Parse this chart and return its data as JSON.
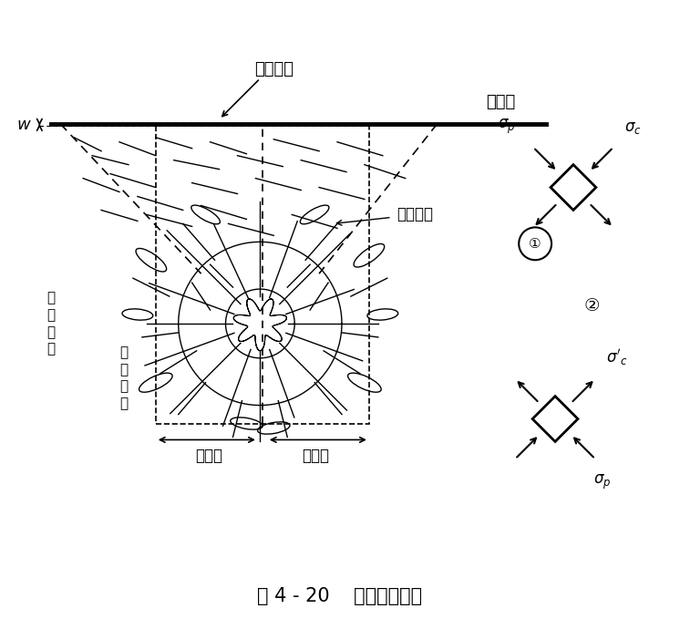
{
  "title": "图 4 - 20    爆炸碎岩机理",
  "title_fontsize": 16,
  "label_baopoloudu": "爆破漏斗",
  "label_ziyoumian": "自由面",
  "label_laduan": "拉断裂缝",
  "label_jingxiang": "径\n向\n裂\n缝",
  "label_huanxiang": "环\n向\n裂\n缝",
  "label_fensui": "粉碎区",
  "label_posui": "破碎区",
  "label_w": "w",
  "label_sigma_p_1": "σ_p",
  "label_sigma_c": "σ_c",
  "label_circle1": "①",
  "label_circle2": "②",
  "label_sigma_c_prime": "σ'_c",
  "label_sigma_p_2": "σ_p",
  "bg_color": "#ffffff",
  "line_color": "#000000"
}
